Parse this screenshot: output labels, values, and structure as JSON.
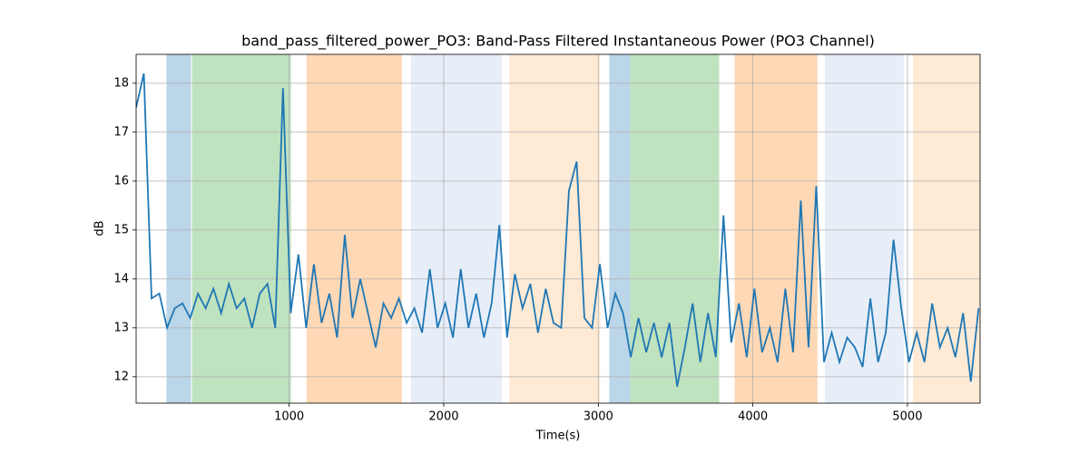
{
  "chart_data": {
    "type": "line",
    "title": "band_pass_filtered_power_PO3: Band-Pass Filtered Instantaneous Power (PO3 Channel)",
    "xlabel": "Time(s)",
    "ylabel": "dB",
    "xlim": [
      10,
      5470
    ],
    "ylim": [
      11.46,
      18.59
    ],
    "xticks": [
      1000,
      2000,
      3000,
      4000,
      5000
    ],
    "yticks": [
      12,
      13,
      14,
      15,
      16,
      17,
      18
    ],
    "grid": true,
    "spans": [
      {
        "start": 206,
        "end": 365,
        "color": "#1f77b4",
        "alpha": 0.3
      },
      {
        "start": 371,
        "end": 1012,
        "color": "#2ca02c",
        "alpha": 0.3
      },
      {
        "start": 1112,
        "end": 1729,
        "color": "#ff7f0e",
        "alpha": 0.3
      },
      {
        "start": 1788,
        "end": 2376,
        "color": "#aec7e8",
        "alpha": 0.3
      },
      {
        "start": 2424,
        "end": 3012,
        "color": "#ffbb78",
        "alpha": 0.3
      },
      {
        "start": 3071,
        "end": 3206,
        "color": "#1f77b4",
        "alpha": 0.3
      },
      {
        "start": 3206,
        "end": 3782,
        "color": "#2ca02c",
        "alpha": 0.3
      },
      {
        "start": 3882,
        "end": 4418,
        "color": "#ff7f0e",
        "alpha": 0.3
      },
      {
        "start": 4465,
        "end": 4976,
        "color": "#aec7e8",
        "alpha": 0.3
      },
      {
        "start": 5035,
        "end": 5482,
        "color": "#ffbb78",
        "alpha": 0.3
      }
    ],
    "x": [
      10,
      60,
      110,
      160,
      210,
      260,
      310,
      360,
      410,
      460,
      510,
      560,
      610,
      660,
      710,
      760,
      810,
      860,
      910,
      960,
      1010,
      1060,
      1110,
      1160,
      1210,
      1260,
      1310,
      1360,
      1410,
      1460,
      1510,
      1560,
      1610,
      1660,
      1710,
      1760,
      1810,
      1860,
      1910,
      1960,
      2010,
      2060,
      2110,
      2160,
      2210,
      2260,
      2310,
      2360,
      2410,
      2460,
      2510,
      2560,
      2610,
      2660,
      2710,
      2760,
      2810,
      2860,
      2910,
      2960,
      3010,
      3060,
      3110,
      3160,
      3210,
      3260,
      3310,
      3360,
      3410,
      3460,
      3510,
      3560,
      3610,
      3660,
      3710,
      3760,
      3810,
      3860,
      3910,
      3960,
      4010,
      4060,
      4110,
      4160,
      4210,
      4260,
      4310,
      4360,
      4410,
      4460,
      4510,
      4560,
      4610,
      4660,
      4710,
      4760,
      4810,
      4860,
      4910,
      4960,
      5010,
      5060,
      5110,
      5160,
      5210,
      5260,
      5310,
      5360,
      5410,
      5460
    ],
    "series": [
      {
        "color": "#1f77b4",
        "values": [
          17.5,
          18.2,
          13.6,
          13.7,
          13.0,
          13.4,
          13.5,
          13.2,
          13.7,
          13.4,
          13.8,
          13.3,
          13.9,
          13.4,
          13.6,
          13.0,
          13.7,
          13.9,
          13.0,
          17.9,
          13.3,
          14.5,
          13.0,
          14.3,
          13.1,
          13.7,
          12.8,
          14.9,
          13.2,
          14.0,
          13.3,
          12.6,
          13.5,
          13.2,
          13.6,
          13.1,
          13.4,
          12.9,
          14.2,
          13.0,
          13.5,
          12.8,
          14.2,
          13.0,
          13.7,
          12.8,
          13.5,
          15.1,
          12.8,
          14.1,
          13.4,
          13.9,
          12.9,
          13.8,
          13.1,
          13.0,
          15.8,
          16.4,
          13.2,
          13.0,
          14.3,
          13.0,
          13.7,
          13.3,
          12.4,
          13.2,
          12.5,
          13.1,
          12.4,
          13.1,
          11.8,
          12.6,
          13.5,
          12.3,
          13.3,
          12.4,
          15.3,
          12.7,
          13.5,
          12.4,
          13.8,
          12.5,
          13.0,
          12.3,
          13.8,
          12.5,
          15.6,
          12.6,
          15.9,
          12.3,
          12.9,
          12.3,
          12.8,
          12.6,
          12.2,
          13.6,
          12.3,
          12.9,
          14.8,
          13.4,
          12.3,
          12.9,
          12.3,
          13.5,
          12.6,
          13.0,
          12.4,
          13.3,
          11.9,
          13.4
        ]
      }
    ]
  }
}
